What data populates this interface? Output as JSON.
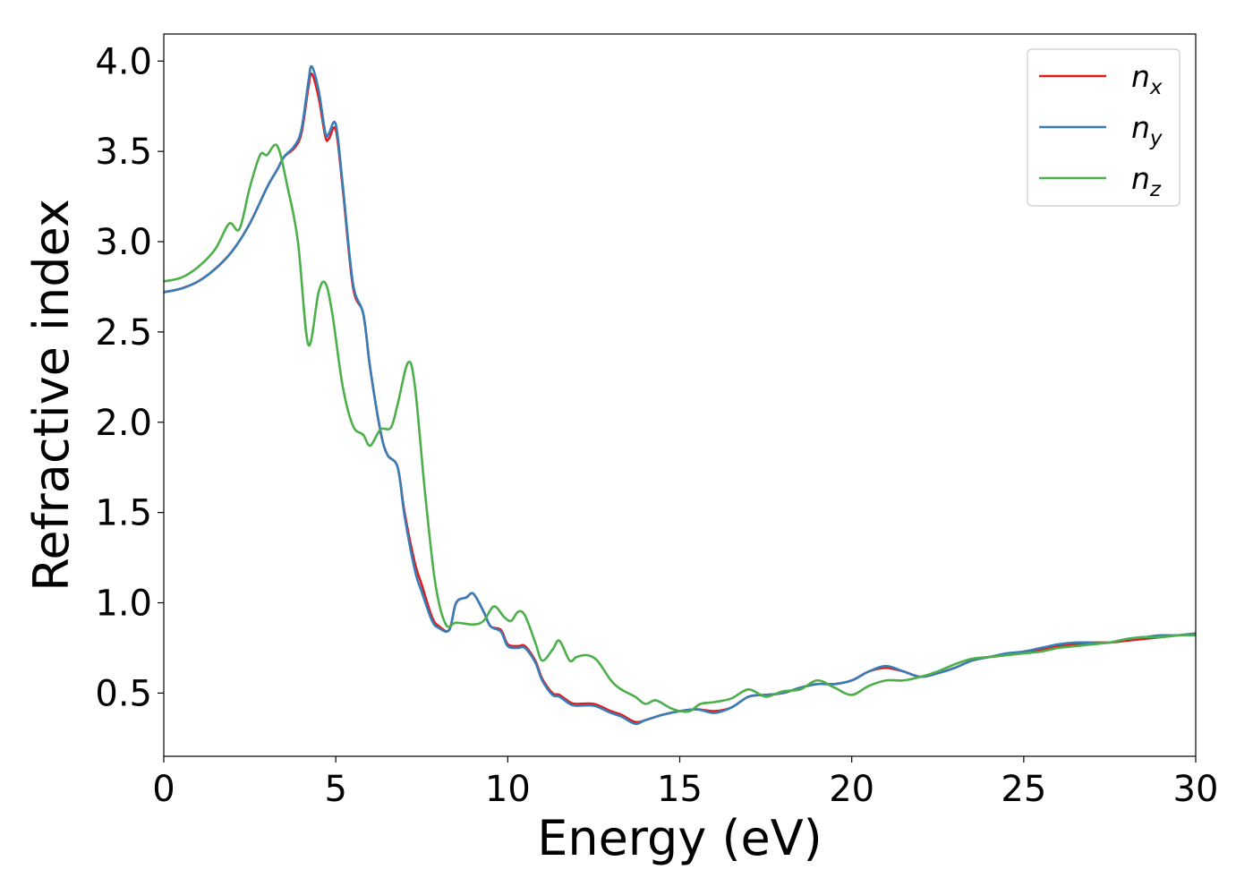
{
  "chart_data": {
    "type": "line",
    "xlabel": "Energy (eV)",
    "ylabel": "Refractive index",
    "xlim": [
      0,
      30
    ],
    "ylim": [
      0.15,
      4.15
    ],
    "xticks": [
      "0",
      "5",
      "10",
      "15",
      "20",
      "25",
      "30"
    ],
    "yticks": [
      "0.5",
      "1.0",
      "1.5",
      "2.0",
      "2.5",
      "3.0",
      "3.5",
      "4.0"
    ],
    "grid": false,
    "legend_position": "top-right",
    "series": [
      {
        "name": "n_x",
        "legend_base": "n",
        "legend_sub": "x",
        "color": "#e41a1c",
        "x": [
          0,
          0.5,
          1,
          1.5,
          2,
          2.5,
          3,
          3.3,
          3.5,
          3.8,
          4,
          4.2,
          4.3,
          4.5,
          4.7,
          4.8,
          5,
          5.2,
          5.5,
          5.8,
          6,
          6.3,
          6.5,
          6.8,
          7,
          7.3,
          7.5,
          7.8,
          8,
          8.3,
          8.5,
          8.8,
          9,
          9.3,
          9.5,
          9.8,
          10,
          10.3,
          10.5,
          10.8,
          11,
          11.3,
          11.5,
          11.8,
          12,
          12.5,
          13,
          13.3,
          13.7,
          14,
          14.5,
          15,
          15.5,
          16,
          16.5,
          17,
          17.5,
          18,
          18.5,
          19,
          19.5,
          20,
          20.5,
          21,
          21.5,
          22,
          22.5,
          23,
          23.5,
          24,
          24.5,
          25,
          25.5,
          26,
          26.5,
          27,
          27.5,
          28,
          28.5,
          29,
          29.5,
          30
        ],
        "y": [
          2.72,
          2.74,
          2.78,
          2.85,
          2.95,
          3.1,
          3.3,
          3.4,
          3.47,
          3.52,
          3.6,
          3.85,
          3.93,
          3.8,
          3.58,
          3.57,
          3.62,
          3.3,
          2.75,
          2.6,
          2.3,
          1.95,
          1.82,
          1.75,
          1.5,
          1.22,
          1.1,
          0.92,
          0.87,
          0.85,
          1.0,
          1.03,
          1.05,
          0.95,
          0.87,
          0.85,
          0.77,
          0.76,
          0.76,
          0.68,
          0.58,
          0.5,
          0.49,
          0.45,
          0.44,
          0.44,
          0.4,
          0.38,
          0.34,
          0.35,
          0.38,
          0.4,
          0.41,
          0.4,
          0.42,
          0.48,
          0.49,
          0.5,
          0.53,
          0.55,
          0.55,
          0.57,
          0.62,
          0.64,
          0.62,
          0.59,
          0.61,
          0.64,
          0.68,
          0.7,
          0.71,
          0.73,
          0.74,
          0.76,
          0.77,
          0.78,
          0.78,
          0.79,
          0.8,
          0.81,
          0.82,
          0.83
        ]
      },
      {
        "name": "n_y",
        "legend_base": "n",
        "legend_sub": "y",
        "color": "#377eb8",
        "x": [
          0,
          0.5,
          1,
          1.5,
          2,
          2.5,
          3,
          3.3,
          3.5,
          3.8,
          4,
          4.2,
          4.3,
          4.5,
          4.7,
          4.8,
          5,
          5.2,
          5.5,
          5.8,
          6,
          6.3,
          6.5,
          6.8,
          7,
          7.3,
          7.5,
          7.8,
          8,
          8.3,
          8.5,
          8.8,
          9,
          9.3,
          9.5,
          9.8,
          10,
          10.3,
          10.5,
          10.8,
          11,
          11.3,
          11.5,
          11.8,
          12,
          12.5,
          13,
          13.3,
          13.7,
          14,
          14.5,
          15,
          15.5,
          16,
          16.5,
          17,
          17.5,
          18,
          18.5,
          19,
          19.5,
          20,
          20.5,
          21,
          21.5,
          22,
          22.5,
          23,
          23.5,
          24,
          24.5,
          25,
          25.5,
          26,
          26.5,
          27,
          27.5,
          28,
          28.5,
          29,
          29.5,
          30
        ],
        "y": [
          2.72,
          2.74,
          2.78,
          2.85,
          2.95,
          3.1,
          3.3,
          3.4,
          3.47,
          3.53,
          3.62,
          3.88,
          3.97,
          3.84,
          3.6,
          3.6,
          3.65,
          3.32,
          2.77,
          2.6,
          2.3,
          1.95,
          1.82,
          1.75,
          1.48,
          1.18,
          1.06,
          0.9,
          0.86,
          0.85,
          1.0,
          1.03,
          1.05,
          0.95,
          0.87,
          0.84,
          0.76,
          0.75,
          0.75,
          0.67,
          0.57,
          0.49,
          0.48,
          0.44,
          0.43,
          0.43,
          0.39,
          0.37,
          0.33,
          0.35,
          0.38,
          0.4,
          0.41,
          0.39,
          0.42,
          0.48,
          0.49,
          0.5,
          0.53,
          0.55,
          0.55,
          0.57,
          0.62,
          0.65,
          0.62,
          0.59,
          0.61,
          0.64,
          0.68,
          0.7,
          0.72,
          0.73,
          0.75,
          0.77,
          0.78,
          0.78,
          0.78,
          0.8,
          0.81,
          0.82,
          0.82,
          0.83
        ]
      },
      {
        "name": "n_z",
        "legend_base": "n",
        "legend_sub": "z",
        "color": "#4daf4a",
        "x": [
          0,
          0.5,
          1,
          1.5,
          1.9,
          2.2,
          2.5,
          2.8,
          3,
          3.3,
          3.6,
          3.9,
          4.2,
          4.5,
          4.7,
          4.9,
          5.2,
          5.5,
          5.8,
          6,
          6.3,
          6.6,
          6.8,
          7.1,
          7.3,
          7.6,
          7.9,
          8.2,
          8.5,
          9,
          9.3,
          9.6,
          9.9,
          10.1,
          10.3,
          10.5,
          10.8,
          11,
          11.3,
          11.5,
          11.8,
          12,
          12.3,
          12.6,
          13,
          13.3,
          13.7,
          14,
          14.3,
          14.7,
          15,
          15.3,
          15.6,
          16,
          16.5,
          17,
          17.5,
          18,
          18.5,
          19,
          19.5,
          20,
          20.5,
          21,
          21.5,
          22,
          22.5,
          23,
          23.5,
          24,
          24.5,
          25,
          25.5,
          26,
          26.5,
          27,
          27.5,
          28,
          28.5,
          29,
          29.5,
          30
        ],
        "y": [
          2.78,
          2.8,
          2.86,
          2.96,
          3.1,
          3.07,
          3.3,
          3.48,
          3.48,
          3.53,
          3.3,
          3.0,
          2.43,
          2.72,
          2.77,
          2.6,
          2.2,
          1.98,
          1.93,
          1.87,
          1.96,
          1.97,
          2.1,
          2.33,
          2.2,
          1.6,
          1.1,
          0.88,
          0.89,
          0.88,
          0.9,
          0.98,
          0.92,
          0.9,
          0.95,
          0.93,
          0.78,
          0.68,
          0.74,
          0.79,
          0.68,
          0.7,
          0.71,
          0.68,
          0.57,
          0.52,
          0.48,
          0.44,
          0.46,
          0.42,
          0.4,
          0.4,
          0.44,
          0.45,
          0.47,
          0.52,
          0.48,
          0.51,
          0.52,
          0.57,
          0.53,
          0.49,
          0.54,
          0.57,
          0.57,
          0.59,
          0.62,
          0.66,
          0.69,
          0.7,
          0.71,
          0.72,
          0.73,
          0.75,
          0.76,
          0.77,
          0.78,
          0.8,
          0.81,
          0.81,
          0.82,
          0.82
        ]
      }
    ]
  }
}
